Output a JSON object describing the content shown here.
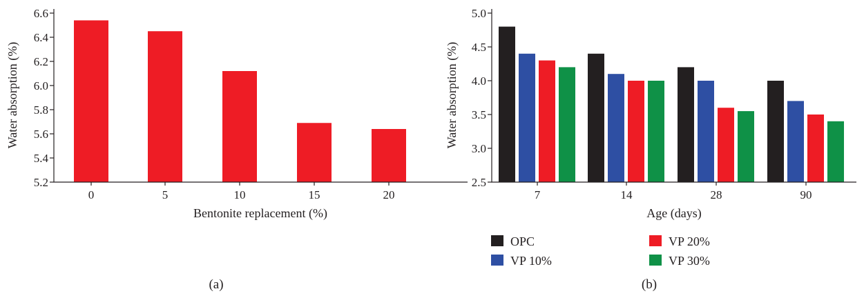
{
  "chart_data": [
    {
      "type": "bar",
      "panel_label": "(a)",
      "categories": [
        "0",
        "5",
        "10",
        "15",
        "20"
      ],
      "values": [
        6.54,
        6.45,
        6.12,
        5.69,
        5.64
      ],
      "xlabel": "Bentonite replacement (%)",
      "ylabel": "Water absorption (%)",
      "ylim": [
        5.2,
        6.6
      ],
      "yticks": [
        "5.2",
        "5.4",
        "5.6",
        "5.8",
        "6.0",
        "6.2",
        "6.4",
        "6.6"
      ],
      "color": "#ee1c25",
      "grid": false
    },
    {
      "type": "bar",
      "panel_label": "(b)",
      "categories": [
        "7",
        "14",
        "28",
        "90"
      ],
      "series": [
        {
          "name": "OPC",
          "color": "#231f20",
          "values": [
            4.8,
            4.4,
            4.2,
            4.0
          ]
        },
        {
          "name": "VP 10%",
          "color": "#2e4fa3",
          "values": [
            4.4,
            4.1,
            4.0,
            3.7
          ]
        },
        {
          "name": "VP 20%",
          "color": "#ee1c25",
          "values": [
            4.3,
            4.0,
            3.6,
            3.5
          ]
        },
        {
          "name": "VP 30%",
          "color": "#0f9147",
          "values": [
            4.2,
            4.0,
            3.55,
            3.4
          ]
        }
      ],
      "xlabel": "Age (days)",
      "ylabel": "Water absorption (%)",
      "ylim": [
        2.5,
        5.0
      ],
      "yticks": [
        "2.5",
        "3.0",
        "3.5",
        "4.0",
        "4.5",
        "5.0"
      ],
      "legend_position": "bottom",
      "grid": false
    }
  ]
}
